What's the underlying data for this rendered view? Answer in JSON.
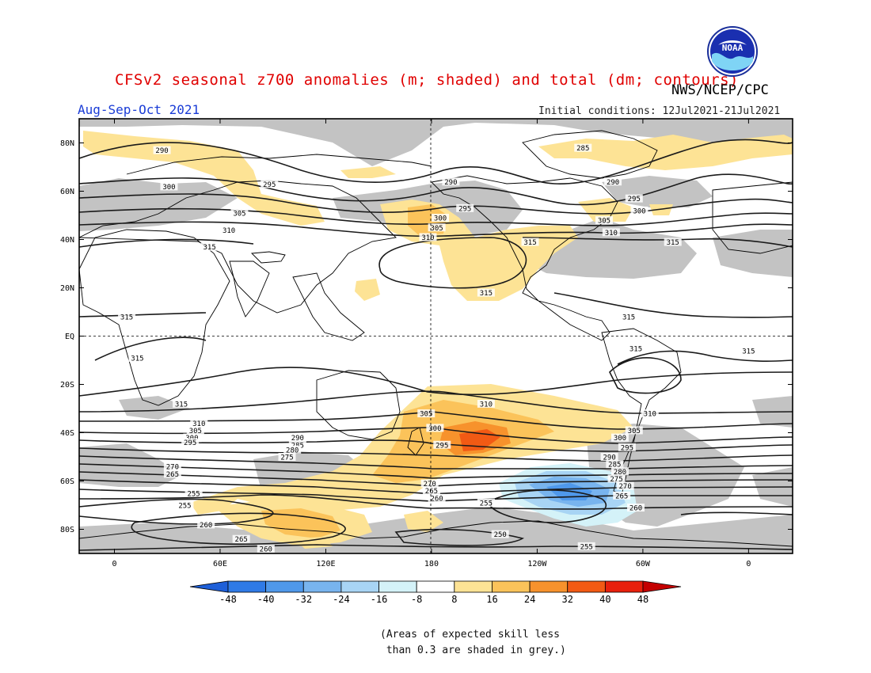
{
  "header": {
    "title": "CFSv2 seasonal z700 anomalies (m; shaded) and total (dm; contours)",
    "agency": "NWS/NCEP/CPC",
    "season": "Aug-Sep-Oct 2021",
    "initial_conditions": "Initial conditions: 12Jul2021-21Jul2021",
    "logo_text": "NOAA"
  },
  "map": {
    "lat_labels": [
      "80N",
      "60N",
      "40N",
      "20N",
      "EQ",
      "20S",
      "40S",
      "60S",
      "80S"
    ],
    "lon_labels": [
      "0",
      "60E",
      "120E",
      "180",
      "120W",
      "60W",
      "0"
    ],
    "lat_range": [
      -90,
      90
    ],
    "lon_range": [
      -20,
      385
    ],
    "grid_lines": "dashed at EQ and 180",
    "colors": {
      "skill_grey": "#c3c3c3",
      "coast": "#000000",
      "contour": "#1a1a1a"
    },
    "contour_labels": [
      {
        "text": "290",
        "lon": 27,
        "lat": 77
      },
      {
        "text": "300",
        "lon": 31,
        "lat": 62
      },
      {
        "text": "305",
        "lon": 71,
        "lat": 51
      },
      {
        "text": "310",
        "lon": 65,
        "lat": 44
      },
      {
        "text": "315",
        "lon": 54,
        "lat": 37
      },
      {
        "text": "295",
        "lon": 88,
        "lat": 63
      },
      {
        "text": "290",
        "lon": 191,
        "lat": 64
      },
      {
        "text": "295",
        "lon": 199,
        "lat": 53
      },
      {
        "text": "300",
        "lon": 185,
        "lat": 49
      },
      {
        "text": "305",
        "lon": 183,
        "lat": 45
      },
      {
        "text": "310",
        "lon": 178,
        "lat": 41
      },
      {
        "text": "315",
        "lon": 236,
        "lat": 39
      },
      {
        "text": "315",
        "lon": 211,
        "lat": 18
      },
      {
        "text": "285",
        "lon": 266,
        "lat": 78
      },
      {
        "text": "290",
        "lon": 283,
        "lat": 64
      },
      {
        "text": "295",
        "lon": 295,
        "lat": 57
      },
      {
        "text": "300",
        "lon": 298,
        "lat": 52
      },
      {
        "text": "305",
        "lon": 278,
        "lat": 48
      },
      {
        "text": "310",
        "lon": 282,
        "lat": 43
      },
      {
        "text": "315",
        "lon": 317,
        "lat": 39
      },
      {
        "text": "315",
        "lon": 7,
        "lat": 8
      },
      {
        "text": "315",
        "lon": 292,
        "lat": 8
      },
      {
        "text": "315",
        "lon": 296,
        "lat": -5
      },
      {
        "text": "315",
        "lon": 360,
        "lat": -6
      },
      {
        "text": "315",
        "lon": 13,
        "lat": -9
      },
      {
        "text": "315",
        "lon": 38,
        "lat": -28
      },
      {
        "text": "310",
        "lon": 211,
        "lat": -28
      },
      {
        "text": "310",
        "lon": 304,
        "lat": -32
      },
      {
        "text": "305",
        "lon": 177,
        "lat": -32
      },
      {
        "text": "300",
        "lon": 182,
        "lat": -38
      },
      {
        "text": "295",
        "lon": 186,
        "lat": -45
      },
      {
        "text": "310",
        "lon": 48,
        "lat": -36
      },
      {
        "text": "305",
        "lon": 46,
        "lat": -39
      },
      {
        "text": "300",
        "lon": 44,
        "lat": -42
      },
      {
        "text": "295",
        "lon": 43,
        "lat": -44
      },
      {
        "text": "290",
        "lon": 104,
        "lat": -42
      },
      {
        "text": "285",
        "lon": 104,
        "lat": -45
      },
      {
        "text": "280",
        "lon": 101,
        "lat": -47
      },
      {
        "text": "275",
        "lon": 98,
        "lat": -50
      },
      {
        "text": "270",
        "lon": 33,
        "lat": -54
      },
      {
        "text": "265",
        "lon": 33,
        "lat": -57
      },
      {
        "text": "255",
        "lon": 45,
        "lat": -65
      },
      {
        "text": "255",
        "lon": 40,
        "lat": -70
      },
      {
        "text": "260",
        "lon": 52,
        "lat": -78
      },
      {
        "text": "265",
        "lon": 72,
        "lat": -84
      },
      {
        "text": "260",
        "lon": 86,
        "lat": -88
      },
      {
        "text": "270",
        "lon": 179,
        "lat": -61
      },
      {
        "text": "265",
        "lon": 180,
        "lat": -64
      },
      {
        "text": "260",
        "lon": 183,
        "lat": -67
      },
      {
        "text": "255",
        "lon": 211,
        "lat": -69
      },
      {
        "text": "250",
        "lon": 219,
        "lat": -82
      },
      {
        "text": "255",
        "lon": 268,
        "lat": -87
      },
      {
        "text": "305",
        "lon": 295,
        "lat": -39
      },
      {
        "text": "300",
        "lon": 287,
        "lat": -42
      },
      {
        "text": "295",
        "lon": 291,
        "lat": -46
      },
      {
        "text": "290",
        "lon": 281,
        "lat": -50
      },
      {
        "text": "285",
        "lon": 284,
        "lat": -53
      },
      {
        "text": "280",
        "lon": 287,
        "lat": -56
      },
      {
        "text": "275",
        "lon": 285,
        "lat": -59
      },
      {
        "text": "270",
        "lon": 290,
        "lat": -62
      },
      {
        "text": "265",
        "lon": 288,
        "lat": -66
      },
      {
        "text": "260",
        "lon": 296,
        "lat": -71
      }
    ]
  },
  "colorbar": {
    "labels": [
      "-48",
      "-40",
      "-32",
      "-24",
      "-16",
      "-8",
      "8",
      "16",
      "24",
      "32",
      "40",
      "48"
    ],
    "colors": [
      "#1e5fd8",
      "#2f7ae6",
      "#4f98ea",
      "#78b4ee",
      "#a8d4f4",
      "#d4f2f8",
      "#ffffff",
      "#fde395",
      "#fbc35a",
      "#f7922c",
      "#f25a14",
      "#e8200c",
      "#c40000"
    ]
  },
  "footnote": {
    "line1": "(Areas of expected skill less",
    "line2": " than 0.3 are shaded in grey.)"
  }
}
